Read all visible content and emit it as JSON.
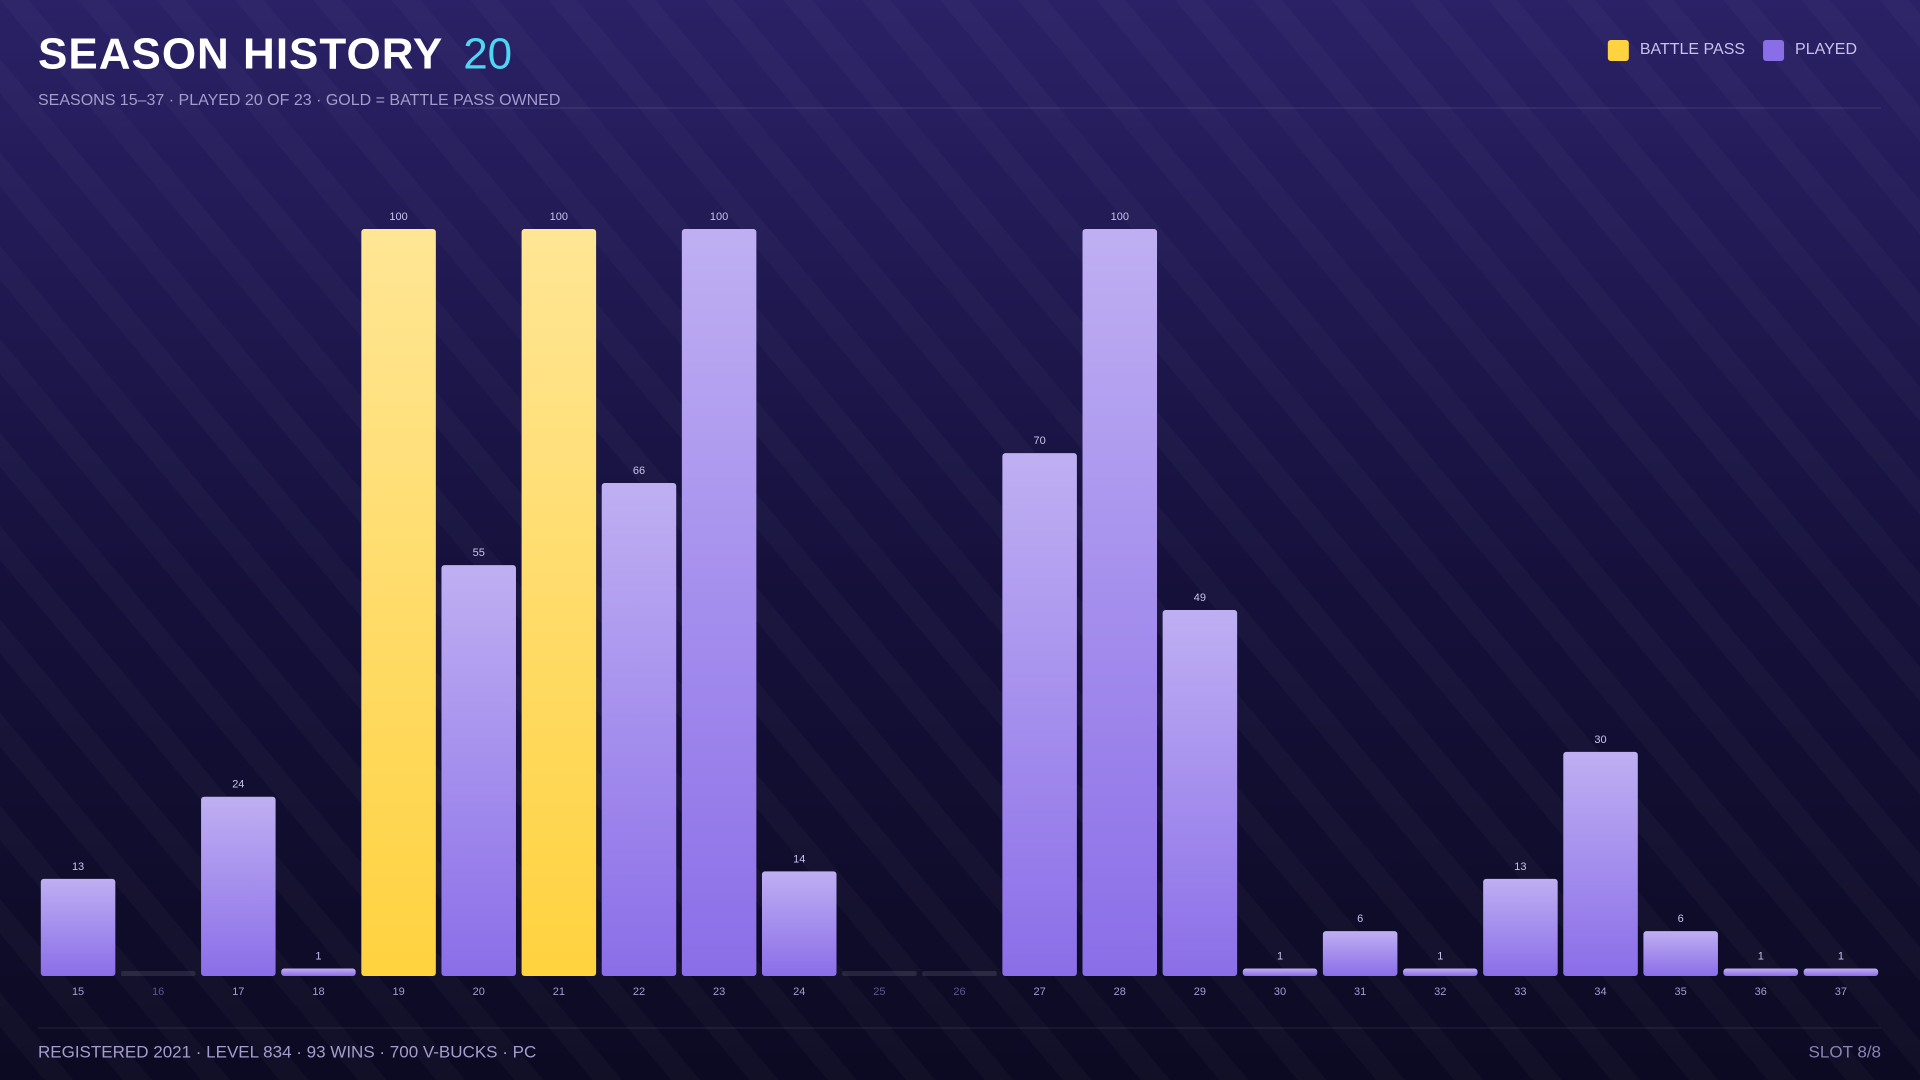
{
  "chart_data": {
    "type": "bar",
    "title": "SEASON HISTORY",
    "title_highlight": "20",
    "subtitle": "SEASONS 15–37 · PLAYED 20 OF 23 · GOLD = BATTLE PASS OWNED",
    "categories": [
      "15",
      "16",
      "17",
      "18",
      "19",
      "20",
      "21",
      "22",
      "23",
      "24",
      "25",
      "26",
      "27",
      "28",
      "29",
      "30",
      "31",
      "32",
      "33",
      "34",
      "35",
      "36",
      "37"
    ],
    "series": [
      {
        "name": "BATTLE PASS",
        "color": "#ffd23f",
        "values": [
          null,
          null,
          null,
          null,
          100,
          null,
          100,
          null,
          null,
          null,
          null,
          null,
          null,
          null,
          null,
          null,
          null,
          null,
          null,
          null,
          null,
          null,
          null
        ]
      },
      {
        "name": "PLAYED",
        "color": "#8a6ee8",
        "values": [
          13,
          null,
          24,
          1,
          null,
          55,
          null,
          66,
          100,
          14,
          null,
          null,
          70,
          100,
          49,
          1,
          6,
          1,
          13,
          30,
          6,
          1,
          1
        ]
      }
    ],
    "ylim": [
      0,
      100
    ],
    "legend": "top-right"
  },
  "footer": {
    "left": "REGISTERED 2021 · LEVEL 834 · 93 WINS · 700 V-BUCKS · PC",
    "right": "SLOT 8/8"
  }
}
